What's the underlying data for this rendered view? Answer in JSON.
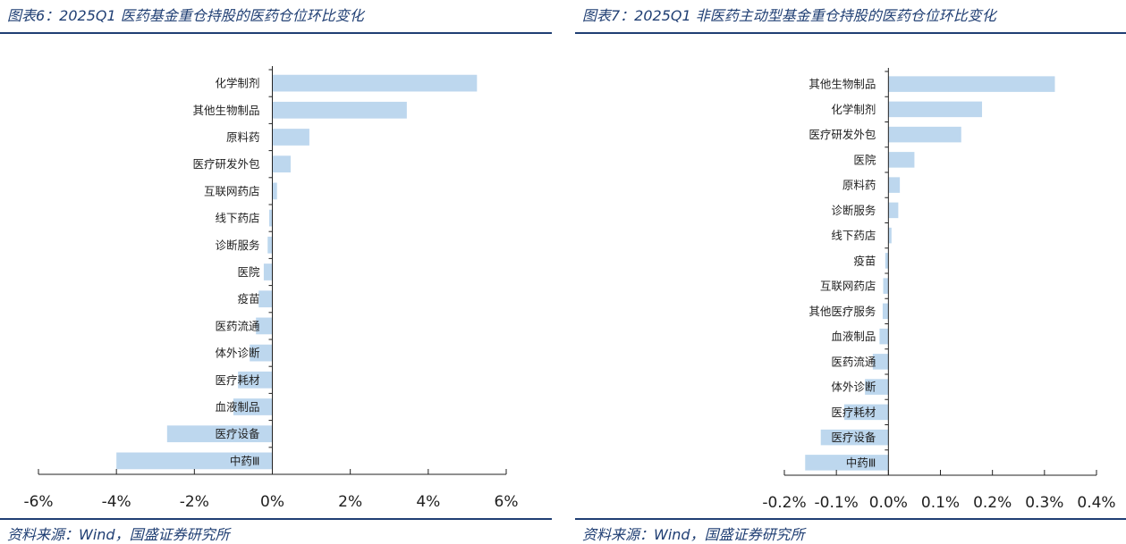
{
  "panels": [
    {
      "title": "图表6：2025Q1 医药基金重仓持股的医药仓位环比变化",
      "source": "资料来源：Wind，国盛证券研究所",
      "chart_data": {
        "type": "bar",
        "orientation": "horizontal",
        "categories": [
          "化学制剂",
          "其他生物制品",
          "原料药",
          "医疗研发外包",
          "互联网药店",
          "线下药店",
          "诊断服务",
          "医院",
          "疫苗",
          "医药流通",
          "体外诊断",
          "医疗耗材",
          "血液制品",
          "医疗设备",
          "中药Ⅲ"
        ],
        "values": [
          5.25,
          3.45,
          0.95,
          0.47,
          0.12,
          -0.08,
          -0.12,
          -0.22,
          -0.35,
          -0.42,
          -0.58,
          -0.88,
          -1.0,
          -2.7,
          -4.0
        ],
        "xlim": [
          -6,
          6
        ],
        "xticks": [
          -6,
          -4,
          -2,
          0,
          2,
          4,
          6
        ],
        "tick_labels": [
          "-6%",
          "-4%",
          "-2%",
          "0%",
          "2%",
          "4%",
          "6%"
        ],
        "bar_color": "#bdd7ee"
      }
    },
    {
      "title": "图表7：2025Q1 非医药主动型基金重仓持股的医药仓位环比变化",
      "source": "资料来源：Wind，国盛证券研究所",
      "chart_data": {
        "type": "bar",
        "orientation": "horizontal",
        "categories": [
          "其他生物制品",
          "化学制剂",
          "医疗研发外包",
          "医院",
          "原料药",
          "诊断服务",
          "线下药店",
          "疫苗",
          "互联网药店",
          "其他医疗服务",
          "血液制品",
          "医药流通",
          "体外诊断",
          "医疗耗材",
          "医疗设备",
          "中药Ⅲ"
        ],
        "values": [
          0.32,
          0.18,
          0.14,
          0.05,
          0.022,
          0.019,
          0.006,
          -0.006,
          -0.01,
          -0.011,
          -0.017,
          -0.03,
          -0.045,
          -0.085,
          -0.13,
          -0.16
        ],
        "xlim": [
          -0.2,
          0.4
        ],
        "xticks": [
          -0.2,
          -0.1,
          0,
          0.1,
          0.2,
          0.3,
          0.4
        ],
        "tick_labels": [
          "-0.2%",
          "-0.1%",
          "0.0%",
          "0.1%",
          "0.2%",
          "0.3%",
          "0.4%"
        ],
        "bar_color": "#bdd7ee"
      }
    }
  ]
}
